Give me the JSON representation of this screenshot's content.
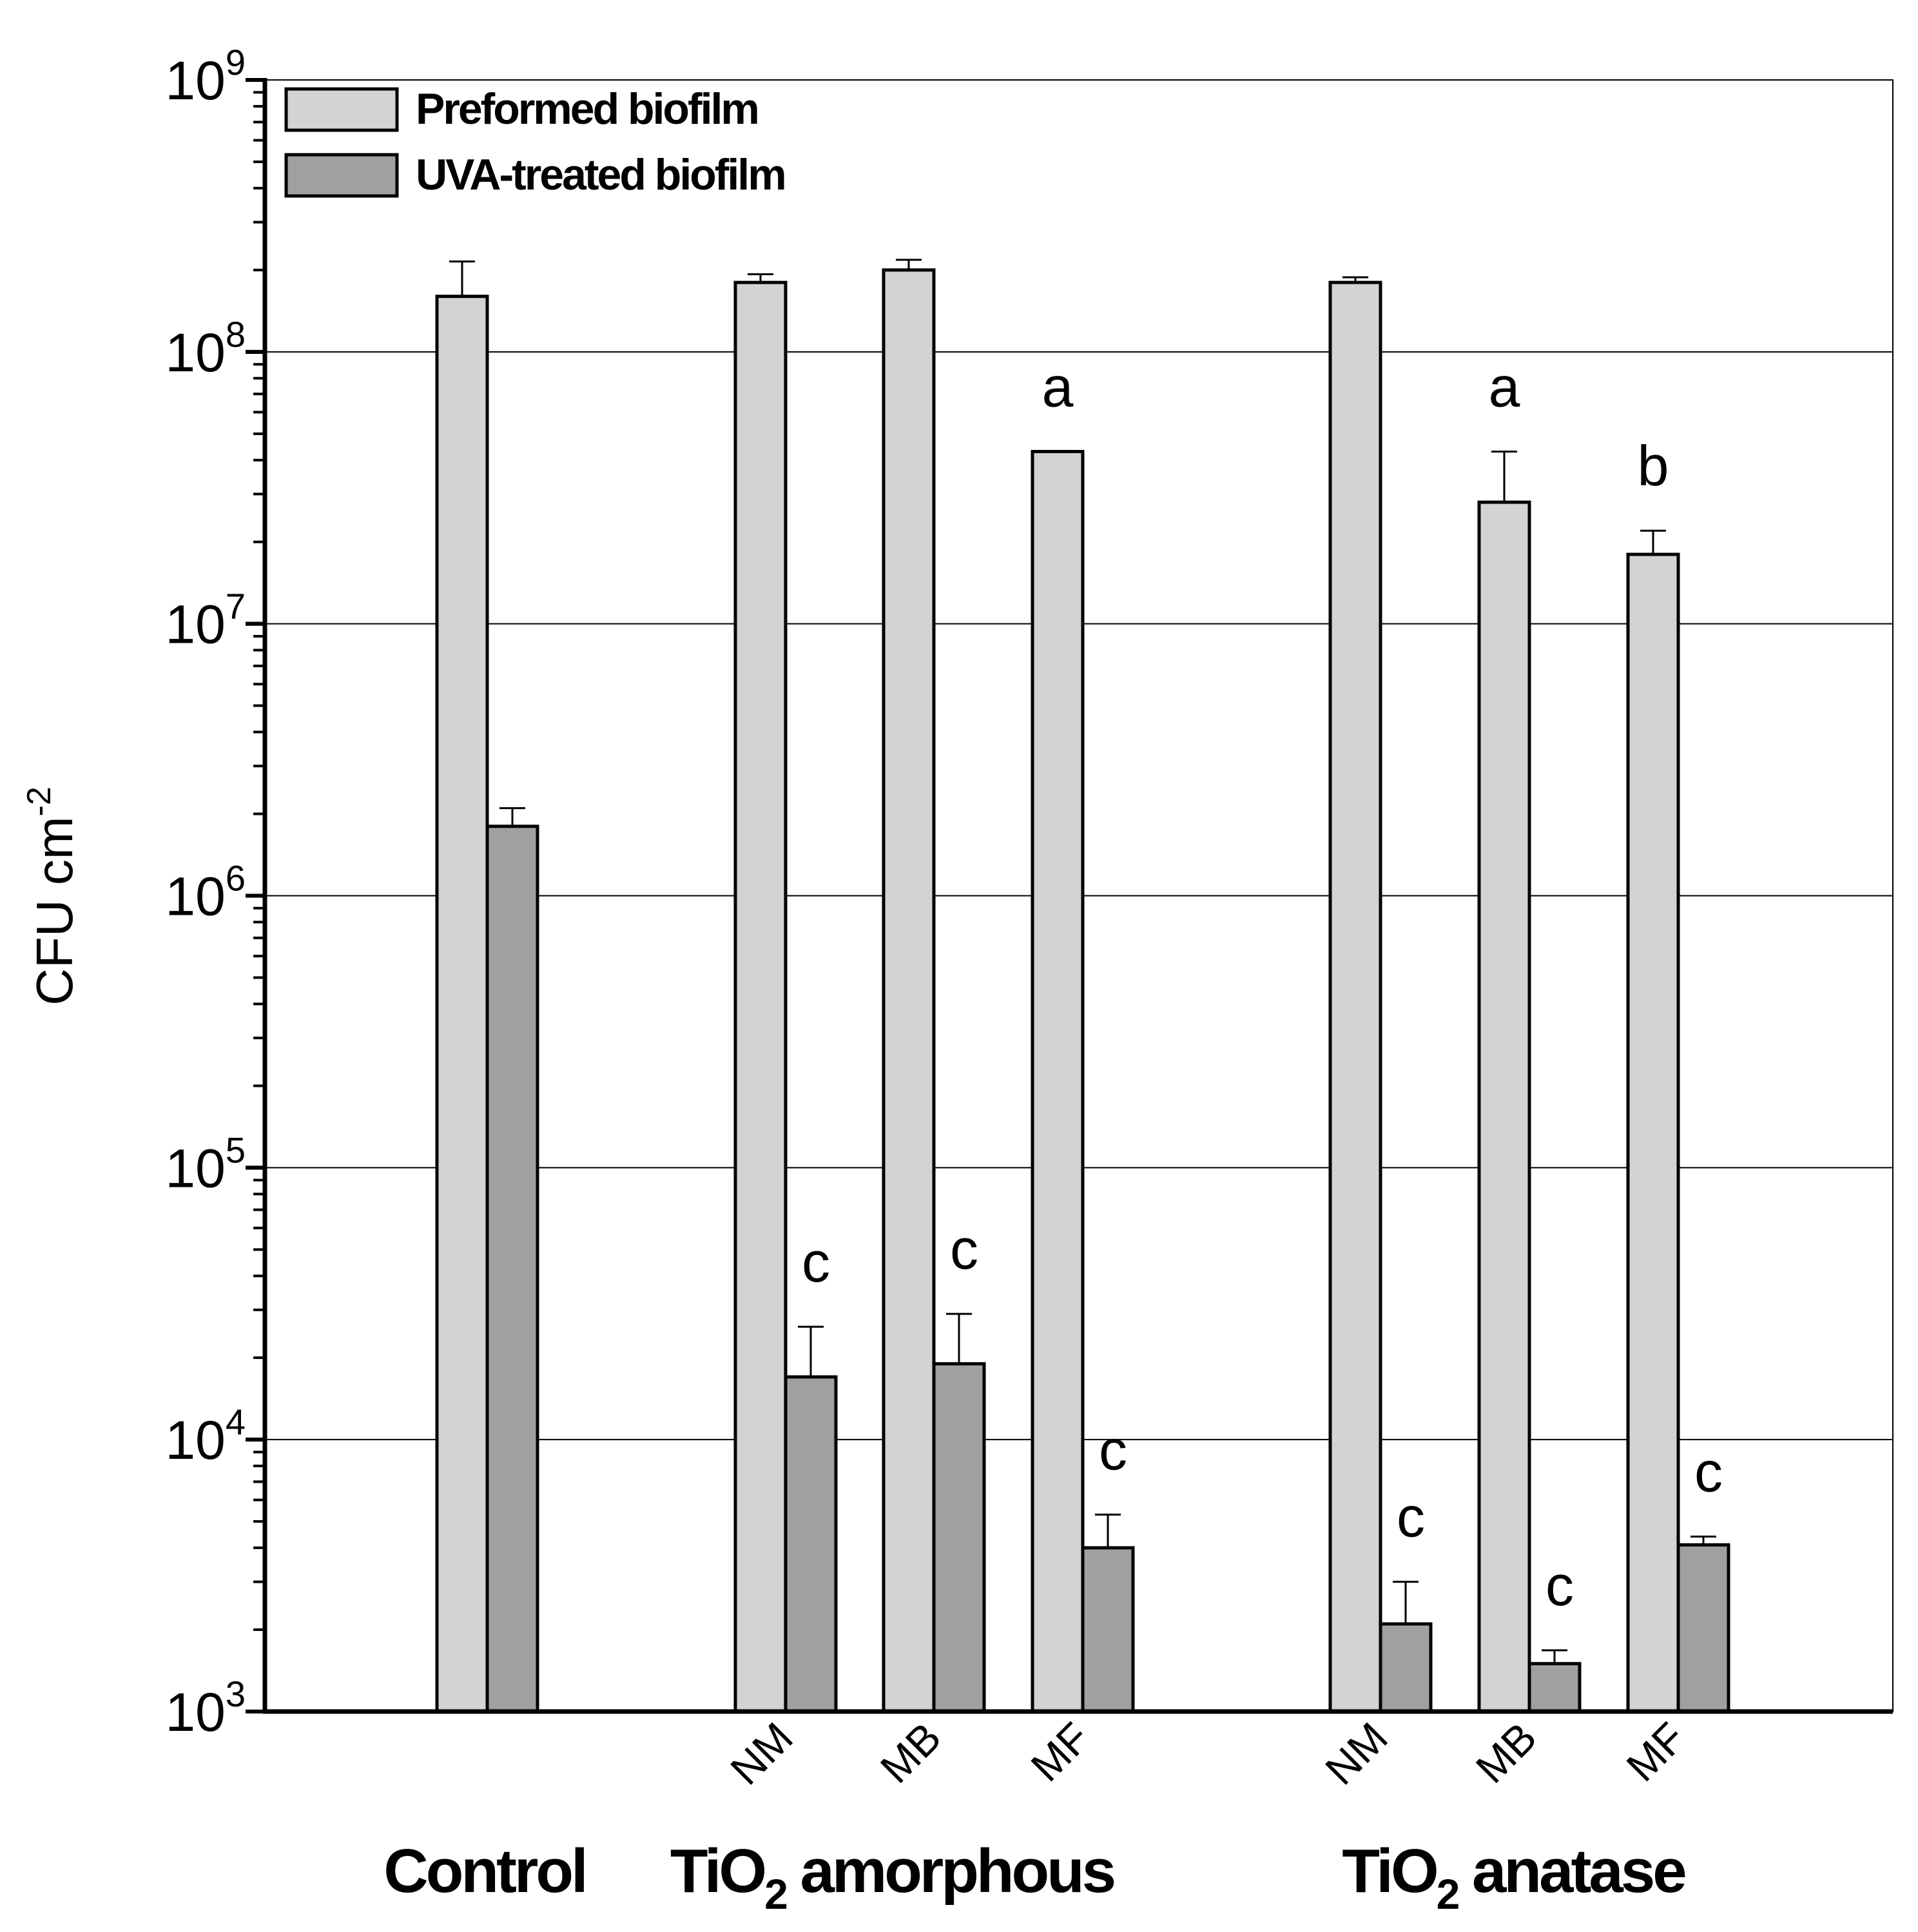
{
  "chart_data": {
    "type": "bar",
    "y_scale": "log",
    "ylim": [
      1000,
      1000000000
    ],
    "ylabel": "CFU cm",
    "ylabel_sup": "-2",
    "ytick_base": "10",
    "ytick_exponents": [
      "3",
      "4",
      "5",
      "6",
      "7",
      "8",
      "9"
    ],
    "grid": "horizontal major gridlines",
    "legend_position": "top-left",
    "series": [
      {
        "name": "Preformed biofilm",
        "color": "#d3d3d3",
        "values": [
          160000000,
          180000000,
          200000000,
          43000000,
          180000000,
          28000000,
          18000000
        ],
        "errors": [
          55000000,
          13000000,
          18000000,
          0,
          8000000,
          15000000,
          4000000
        ]
      },
      {
        "name": "UVA-treated biofilm",
        "color": "#a0a0a0",
        "values": [
          1800000,
          17000,
          19000,
          4000,
          2100,
          1500,
          4100
        ],
        "errors": [
          300000,
          9000,
          10000,
          1300,
          900,
          180,
          300
        ]
      }
    ],
    "categories": [
      "",
      "NM",
      "MB",
      "MF",
      "NM",
      "MB",
      "MF"
    ],
    "groups": [
      {
        "label": "Control",
        "sub": "",
        "label_tail": ""
      },
      {
        "label": "TiO",
        "sub": "2",
        "label_tail": " amorphous"
      },
      {
        "label": "TiO",
        "sub": "2",
        "label_tail": " anatase"
      }
    ],
    "annotations": [
      {
        "text": "a",
        "bar": 3,
        "series": 0
      },
      {
        "text": "a",
        "bar": 5,
        "series": 0
      },
      {
        "text": "b",
        "bar": 6,
        "series": 0
      },
      {
        "text": "c",
        "bar": 1,
        "series": 1
      },
      {
        "text": "c",
        "bar": 2,
        "series": 1
      },
      {
        "text": "c",
        "bar": 3,
        "series": 1
      },
      {
        "text": "c",
        "bar": 4,
        "series": 1
      },
      {
        "text": "c",
        "bar": 5,
        "series": 1
      },
      {
        "text": "c",
        "bar": 6,
        "series": 1
      }
    ]
  }
}
